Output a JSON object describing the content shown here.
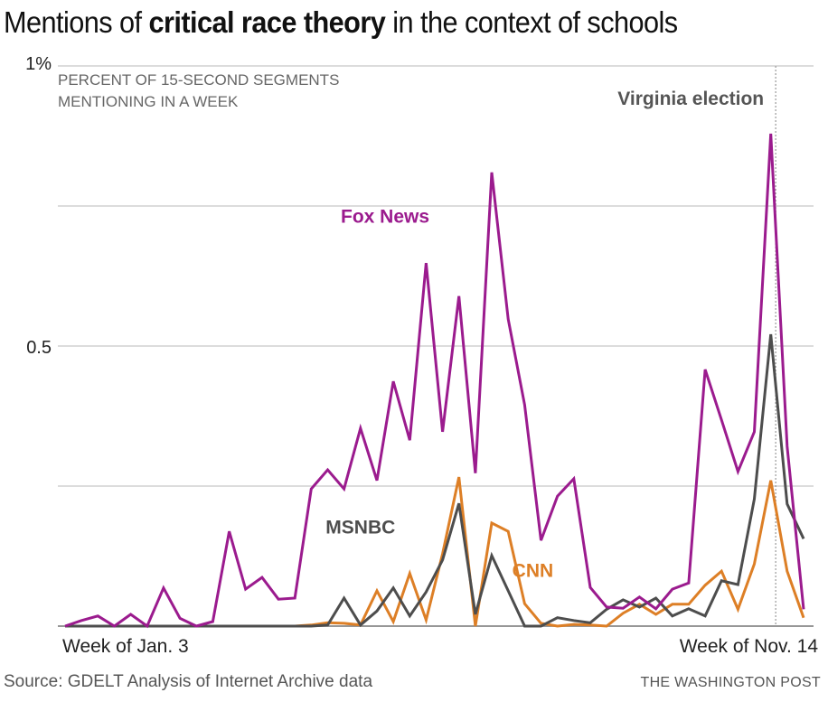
{
  "title": {
    "prefix": "Mentions of ",
    "bold": "critical race theory",
    "suffix": " in the context of schools"
  },
  "subtitle_lines": [
    "PERCENT OF 15-SECOND SEGMENTS",
    "MENTIONING IN A WEEK"
  ],
  "footer": {
    "source": "Source: GDELT Analysis of Internet Archive data",
    "credit": "THE WASHINGTON POST"
  },
  "colors": {
    "fox": "#9b1b8e",
    "msnbc": "#4d4d4d",
    "cnn": "#dd7f26",
    "grid": "#c8c8c8",
    "axis": "#888888",
    "marker": "#999999"
  },
  "chart_data": {
    "type": "line",
    "title": "Mentions of critical race theory in the context of schools",
    "ylabel": "Percent of 15-second segments mentioning in a week",
    "xlabel": "",
    "ylim": [
      0,
      1
    ],
    "yticks": [
      {
        "value": 1,
        "label": "1%"
      },
      {
        "value": 0.75,
        "label": ""
      },
      {
        "value": 0.5,
        "label": "0.5"
      },
      {
        "value": 0.25,
        "label": ""
      }
    ],
    "grid": true,
    "x_count": 46,
    "x_tick_labels": [
      {
        "index": 0,
        "label": "Week of Jan. 3"
      },
      {
        "index": 45,
        "label": "Week of Nov. 14"
      }
    ],
    "annotation": {
      "label": "Virginia election",
      "index": 43.3
    },
    "series": [
      {
        "name": "Fox News",
        "color_key": "fox",
        "label_pos": {
          "index": 19.5,
          "value": 0.72
        },
        "values": [
          0,
          0.01,
          0.018,
          0,
          0.021,
          0,
          0.068,
          0.014,
          0,
          0.008,
          0.169,
          0.066,
          0.087,
          0.048,
          0.05,
          0.245,
          0.279,
          0.245,
          0.353,
          0.26,
          0.437,
          0.332,
          0.648,
          0.347,
          0.589,
          0.273,
          0.81,
          0.548,
          0.395,
          0.153,
          0.232,
          0.263,
          0.069,
          0.034,
          0.032,
          0.052,
          0.031,
          0.066,
          0.077,
          0.458,
          0.368,
          0.276,
          0.347,
          0.879,
          0.321,
          0.03
        ]
      },
      {
        "name": "MSNBC",
        "color_key": "msnbc",
        "label_pos": {
          "index": 18,
          "value": 0.165
        },
        "values": [
          0,
          0,
          0,
          0,
          0,
          0,
          0,
          0,
          0,
          0,
          0,
          0,
          0,
          0,
          0,
          0,
          0.002,
          0.05,
          0.002,
          0.027,
          0.068,
          0.018,
          0.061,
          0.118,
          0.219,
          0.021,
          0.126,
          0.063,
          0,
          0,
          0.015,
          0.01,
          0.006,
          0.03,
          0.047,
          0.034,
          0.05,
          0.018,
          0.031,
          0.018,
          0.081,
          0.074,
          0.227,
          0.521,
          0.218,
          0.156
        ]
      },
      {
        "name": "CNN",
        "color_key": "cnn",
        "label_pos": {
          "index": 28.5,
          "value": 0.088
        },
        "values": [
          0,
          0,
          0,
          0,
          0,
          0,
          0,
          0,
          0,
          0,
          0,
          0,
          0,
          0,
          0,
          0.002,
          0.006,
          0.005,
          0.002,
          0.063,
          0.008,
          0.094,
          0.011,
          0.129,
          0.266,
          0,
          0.184,
          0.169,
          0.04,
          0.005,
          0,
          0.003,
          0.002,
          0,
          0.023,
          0.039,
          0.021,
          0.039,
          0.039,
          0.073,
          0.098,
          0.03,
          0.111,
          0.26,
          0.098,
          0.015
        ]
      }
    ]
  }
}
